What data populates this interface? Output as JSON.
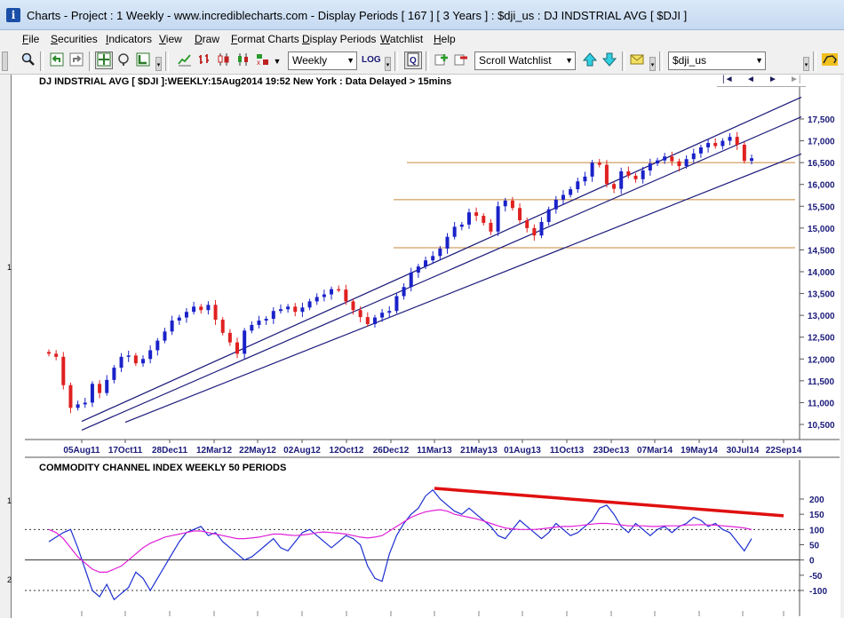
{
  "window": {
    "title": "Charts - Project : 1 Weekly - www.incrediblecharts.com - Display Periods   [ 167 ]  [ 3 Years ] : $dji_us : DJ INDSTRIAL AVG  [ $DJI ]",
    "app_icon": "i"
  },
  "menu": {
    "items": [
      {
        "label": "File",
        "key": "F"
      },
      {
        "label": "Securities",
        "key": "S"
      },
      {
        "label": "Indicators",
        "key": "I"
      },
      {
        "label": "View",
        "key": "V"
      },
      {
        "label": "Draw",
        "key": "D"
      },
      {
        "label": "Format Charts",
        "key": "F"
      },
      {
        "label": "Display Periods",
        "key": "D"
      },
      {
        "label": "Watchlist",
        "key": "W"
      },
      {
        "label": "Help",
        "key": "H"
      }
    ]
  },
  "toolbar": {
    "period_value": "Weekly",
    "log_label": "LOG",
    "watchlist_value": "Scroll Watchlist",
    "security_value": "$dji_us",
    "icons": [
      "zoom-icon",
      "undo-icon",
      "redo-icon",
      "crosshair-icon",
      "magnifier-icon",
      "chart-type-icon",
      "line-chart-icon",
      "bar-chart-icon",
      "candle-chart-icon",
      "candle-fill-icon",
      "equivolume-icon",
      "indicator-icon",
      "quick-view-icon",
      "add-security-icon",
      "remove-security-icon",
      "up-arrow-icon",
      "down-arrow-icon",
      "mail-icon",
      "bull-icon"
    ]
  },
  "price_chart": {
    "title": "DJ INDSTRIAL AVG [ $DJI ]:WEEKLY:15Aug2014 19:52 New York : Data Delayed > 15mins",
    "panel_label": "1",
    "nav": [
      "|◄",
      "◄",
      "►",
      "►|"
    ]
  },
  "cci_chart": {
    "title": "COMMODITY CHANNEL INDEX WEEKLY 50 PERIODS",
    "panel_labels": [
      "1",
      "2"
    ]
  },
  "chart_data": [
    {
      "type": "candlestick",
      "title": "DJ INDSTRIAL AVG [ $DJI ]:WEEKLY:15Aug2014 19:52 New York : Data Delayed > 15mins",
      "x_tick_labels": [
        "05Aug11",
        "17Oct11",
        "28Dec11",
        "12Mar12",
        "22May12",
        "02Aug12",
        "12Oct12",
        "26Dec12",
        "11Mar13",
        "21May13",
        "01Aug13",
        "11Oct13",
        "23Dec13",
        "07Mar14",
        "19May14",
        "30Jul14",
        "22Sep14"
      ],
      "y_tick_labels": [
        "17,500",
        "17,000",
        "16,500",
        "16,000",
        "15,500",
        "15,000",
        "14,500",
        "14,000",
        "13,500",
        "13,000",
        "12,500",
        "12,000",
        "11,500",
        "11,000",
        "10,500"
      ],
      "ylim": [
        10300,
        17900
      ],
      "colors": {
        "up": "#1a22c8",
        "down": "#e02020",
        "channel": "#1a1a7a",
        "horizontal": "#c8873a"
      },
      "closes_approx": [
        12120,
        12050,
        11400,
        10880,
        10960,
        11000,
        11430,
        11220,
        11520,
        11800,
        12050,
        12080,
        11900,
        12000,
        12200,
        12420,
        12630,
        12880,
        12950,
        13080,
        13200,
        13120,
        13240,
        12900,
        12600,
        12380,
        12120,
        12650,
        12780,
        12880,
        12920,
        13100,
        13140,
        13200,
        13080,
        13180,
        13320,
        13420,
        13480,
        13600,
        13590,
        13320,
        13120,
        12960,
        12800,
        12950,
        13060,
        13100,
        13440,
        13650,
        13980,
        14120,
        14260,
        14360,
        14530,
        14800,
        15030,
        15080,
        15360,
        15280,
        15120,
        14920,
        15500,
        15630,
        15460,
        15180,
        15000,
        14830,
        15140,
        15430,
        15650,
        15760,
        15890,
        16070,
        16180,
        16500,
        16450,
        16010,
        15900,
        16300,
        16200,
        16120,
        16320,
        16480,
        16550,
        16640,
        16530,
        16420,
        16580,
        16710,
        16850,
        16950,
        16880,
        17000,
        17090,
        16910,
        16540,
        16600
      ],
      "horizontal_lines": [
        16500,
        15650,
        14550
      ],
      "channel_lines": [
        {
          "name": "upper",
          "from": [
            "05Aug11",
            10570
          ],
          "to": [
            "22Sep14",
            18000
          ]
        },
        {
          "name": "middle",
          "from": [
            "05Aug11",
            10370
          ],
          "to": [
            "22Sep14",
            17550
          ]
        },
        {
          "name": "lower",
          "from": [
            "17Oct11",
            10550
          ],
          "to": [
            "22Sep14",
            16700
          ]
        }
      ]
    },
    {
      "type": "line",
      "title": "COMMODITY CHANNEL INDEX WEEKLY 50 PERIODS",
      "y_tick_labels": [
        "200",
        "150",
        "100",
        "50",
        "0",
        "-50",
        "-100"
      ],
      "ylim": [
        -130,
        250
      ],
      "reference_lines": [
        100,
        0,
        -100
      ],
      "series": [
        {
          "color": "#1c2fd0",
          "values": [
            60,
            75,
            90,
            100,
            40,
            -30,
            -100,
            -120,
            -80,
            -130,
            -110,
            -90,
            -40,
            -60,
            -100,
            -60,
            -20,
            20,
            60,
            90,
            100,
            110,
            80,
            90,
            60,
            40,
            20,
            0,
            10,
            30,
            50,
            70,
            40,
            30,
            60,
            90,
            100,
            80,
            60,
            40,
            60,
            80,
            70,
            50,
            -20,
            -60,
            -70,
            20,
            80,
            120,
            150,
            170,
            210,
            230,
            200,
            180,
            160,
            150,
            170,
            150,
            130,
            110,
            80,
            70,
            100,
            130,
            110,
            90,
            70,
            90,
            120,
            100,
            80,
            90,
            110,
            130,
            170,
            180,
            150,
            110,
            90,
            120,
            100,
            80,
            100,
            110,
            90,
            110,
            120,
            140,
            130,
            110,
            120,
            100,
            90,
            60,
            30,
            70
          ]
        },
        {
          "color": "#e020d8",
          "values": [
            100,
            90,
            70,
            40,
            10,
            -10,
            -30,
            -40,
            -40,
            -30,
            -20,
            0,
            20,
            40,
            55,
            65,
            75,
            80,
            85,
            90,
            95,
            95,
            90,
            85,
            80,
            75,
            70,
            70,
            72,
            75,
            80,
            85,
            85,
            82,
            80,
            82,
            85,
            90,
            92,
            90,
            88,
            85,
            80,
            75,
            72,
            75,
            80,
            95,
            110,
            125,
            140,
            150,
            158,
            162,
            165,
            160,
            150,
            145,
            140,
            135,
            128,
            120,
            112,
            105,
            102,
            100,
            100,
            100,
            102,
            105,
            108,
            110,
            110,
            112,
            115,
            118,
            120,
            120,
            118,
            115,
            112,
            112,
            112,
            110,
            110,
            112,
            112,
            112,
            115,
            115,
            116,
            115,
            114,
            112,
            110,
            108,
            105,
            100
          ]
        }
      ],
      "trend_line": {
        "color": "#e01010",
        "from": [
          "11Mar13",
          235
        ],
        "to": [
          "22Sep14",
          145
        ]
      }
    }
  ]
}
